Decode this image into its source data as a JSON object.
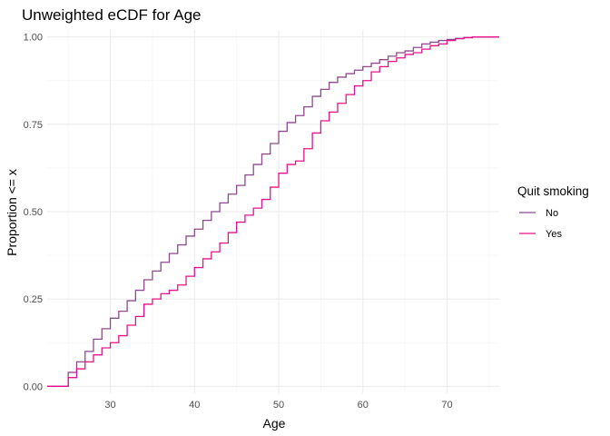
{
  "chart_data": {
    "type": "line",
    "step": true,
    "title": "Unweighted eCDF for Age",
    "xlabel": "Age",
    "ylabel": "Proportion <= x",
    "xlim": [
      22.5,
      76.2
    ],
    "ylim": [
      -0.02,
      1.02
    ],
    "x_ticks": [
      30,
      40,
      50,
      60,
      70
    ],
    "y_ticks": [
      0.0,
      0.25,
      0.5,
      0.75,
      1.0
    ],
    "x_tick_labels": [
      "30",
      "40",
      "50",
      "60",
      "70"
    ],
    "y_tick_labels": [
      "0.00",
      "0.25",
      "0.50",
      "0.75",
      "1.00"
    ],
    "grid": true,
    "legend": {
      "title": "Quit smoking",
      "position": "right"
    },
    "series": [
      {
        "name": "No",
        "color": "#8E4A8F",
        "x": [
          25,
          26,
          27,
          28,
          29,
          30,
          31,
          32,
          33,
          34,
          35,
          36,
          37,
          38,
          39,
          40,
          41,
          42,
          43,
          44,
          45,
          46,
          47,
          48,
          49,
          50,
          51,
          52,
          53,
          54,
          55,
          56,
          57,
          58,
          59,
          60,
          61,
          62,
          63,
          64,
          65,
          66,
          67,
          68,
          69,
          70,
          71,
          72,
          73,
          74
        ],
        "y": [
          0.04,
          0.07,
          0.1,
          0.135,
          0.165,
          0.195,
          0.215,
          0.245,
          0.275,
          0.305,
          0.33,
          0.355,
          0.38,
          0.405,
          0.43,
          0.45,
          0.475,
          0.5,
          0.525,
          0.55,
          0.575,
          0.605,
          0.635,
          0.665,
          0.695,
          0.73,
          0.755,
          0.775,
          0.8,
          0.83,
          0.85,
          0.87,
          0.885,
          0.895,
          0.905,
          0.915,
          0.925,
          0.935,
          0.945,
          0.955,
          0.96,
          0.97,
          0.98,
          0.985,
          0.99,
          0.993,
          0.996,
          0.998,
          1.0,
          1.0
        ]
      },
      {
        "name": "Yes",
        "color": "#E7128B",
        "x": [
          25,
          26,
          27,
          28,
          29,
          30,
          31,
          32,
          33,
          34,
          35,
          36,
          37,
          38,
          39,
          40,
          41,
          42,
          43,
          44,
          45,
          46,
          47,
          48,
          49,
          50,
          51,
          52,
          53,
          54,
          55,
          56,
          57,
          58,
          59,
          60,
          61,
          62,
          63,
          64,
          65,
          66,
          67,
          68,
          69,
          70,
          71,
          72,
          73,
          74
        ],
        "y": [
          0.025,
          0.05,
          0.07,
          0.09,
          0.11,
          0.125,
          0.145,
          0.175,
          0.2,
          0.235,
          0.25,
          0.265,
          0.275,
          0.29,
          0.315,
          0.34,
          0.365,
          0.385,
          0.41,
          0.44,
          0.47,
          0.49,
          0.51,
          0.535,
          0.57,
          0.61,
          0.635,
          0.645,
          0.68,
          0.725,
          0.76,
          0.785,
          0.81,
          0.835,
          0.86,
          0.875,
          0.9,
          0.915,
          0.93,
          0.94,
          0.95,
          0.955,
          0.965,
          0.975,
          0.98,
          0.99,
          0.995,
          0.998,
          1.0,
          1.0
        ]
      }
    ]
  }
}
